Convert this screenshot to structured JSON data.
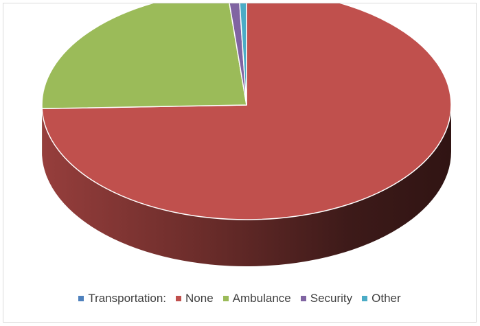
{
  "chart_data": {
    "type": "pie",
    "title": "",
    "legend_position": "bottom",
    "three_d": true,
    "slices": [
      {
        "label": "None",
        "value": 74.5,
        "color": "#c0504d"
      },
      {
        "label": "Ambulance",
        "value": 24.0,
        "color": "#9bbb59"
      },
      {
        "label": "Security",
        "value": 0.9,
        "color": "#8064a2"
      },
      {
        "label": "Other",
        "value": 0.6,
        "color": "#4bacc6"
      }
    ],
    "legend": [
      {
        "label": "Transportation:",
        "color": "#4f81bd"
      },
      {
        "label": "None",
        "color": "#c0504d"
      },
      {
        "label": "Ambulance",
        "color": "#9bbb59"
      },
      {
        "label": "Security",
        "color": "#8064a2"
      },
      {
        "label": "Other",
        "color": "#4bacc6"
      }
    ]
  }
}
